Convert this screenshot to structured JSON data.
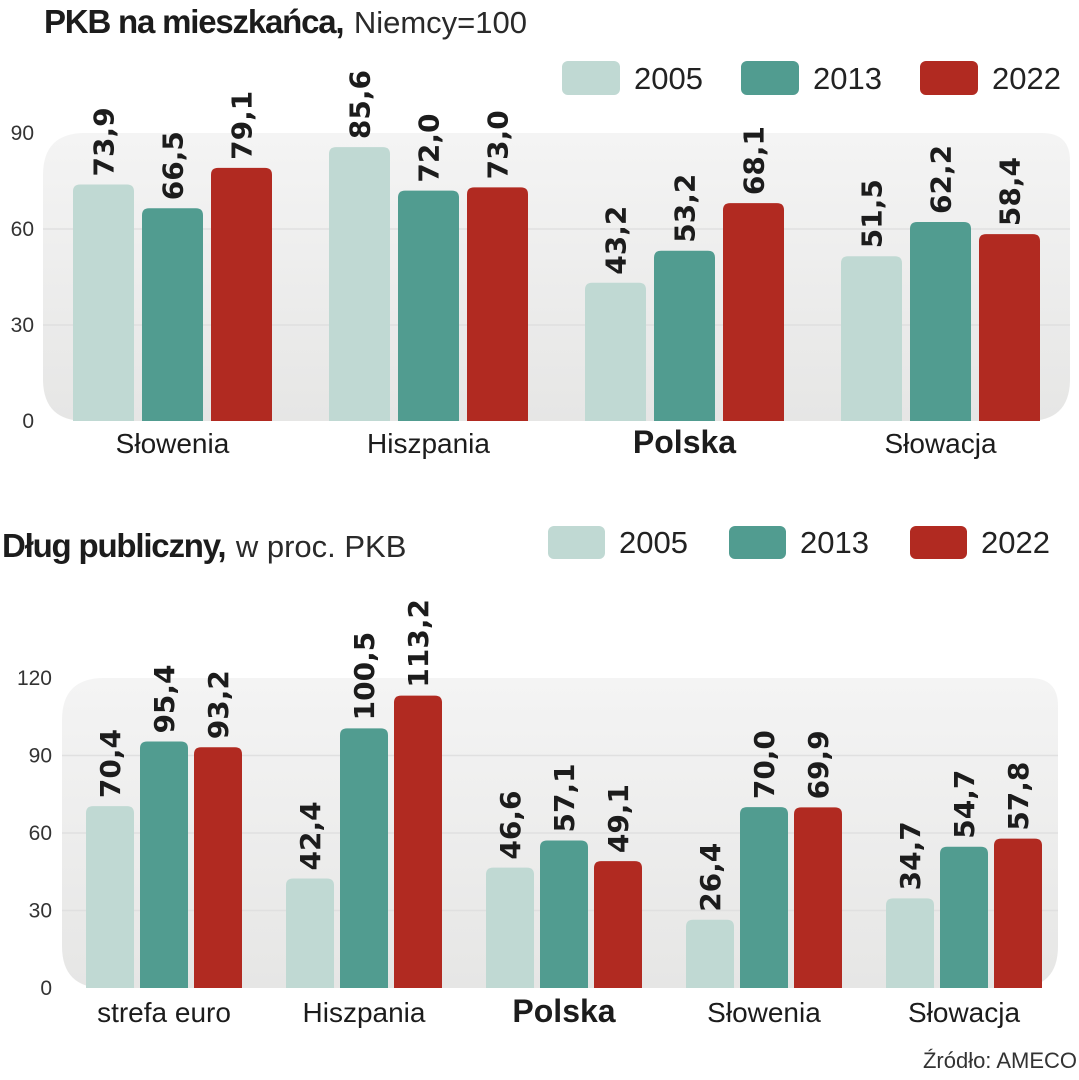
{
  "colors": {
    "2005": "#c0d9d3",
    "2013": "#519c90",
    "2022": "#b12a21",
    "panel": "#efefef",
    "grid": "#e0e0e0"
  },
  "source": "Źródło: AMECO",
  "chart_data": [
    {
      "type": "bar",
      "title": "PKB na mieszkańca,",
      "subtitle": "Niemcy=100",
      "xlabel": "",
      "ylabel": "",
      "ylim": [
        0,
        90
      ],
      "yticks": [
        0,
        30,
        60,
        90
      ],
      "grid": true,
      "legend": {
        "placement": "top-right",
        "entries": [
          "2005",
          "2013",
          "2022"
        ]
      },
      "categories": [
        "Słowenia",
        "Hiszpania",
        "Polska",
        "Słowacja"
      ],
      "highlight_category": "Polska",
      "series": [
        {
          "name": "2005",
          "values": [
            73.9,
            85.6,
            43.2,
            51.5
          ],
          "labels": [
            "73,9",
            "85,6",
            "43,2",
            "51,5"
          ]
        },
        {
          "name": "2013",
          "values": [
            66.5,
            72.0,
            53.2,
            62.2
          ],
          "labels": [
            "66,5",
            "72,0",
            "53,2",
            "62,2"
          ]
        },
        {
          "name": "2022",
          "values": [
            79.1,
            73.0,
            68.1,
            58.4
          ],
          "labels": [
            "79,1",
            "73,0",
            "68,1",
            "58,4"
          ]
        }
      ]
    },
    {
      "type": "bar",
      "title": "Dług publiczny,",
      "subtitle": "w proc. PKB",
      "xlabel": "",
      "ylabel": "",
      "ylim": [
        0,
        120
      ],
      "yticks": [
        0,
        30,
        60,
        90,
        120
      ],
      "grid": true,
      "legend": {
        "placement": "top-right",
        "entries": [
          "2005",
          "2013",
          "2022"
        ]
      },
      "categories": [
        "strefa euro",
        "Hiszpania",
        "Polska",
        "Słowenia",
        "Słowacja"
      ],
      "highlight_category": "Polska",
      "series": [
        {
          "name": "2005",
          "values": [
            70.4,
            42.4,
            46.6,
            26.4,
            34.7
          ],
          "labels": [
            "70,4",
            "42,4",
            "46,6",
            "26,4",
            "34,7"
          ]
        },
        {
          "name": "2013",
          "values": [
            95.4,
            100.5,
            57.1,
            70.0,
            54.7
          ],
          "labels": [
            "95,4",
            "100,5",
            "57,1",
            "70,0",
            "54,7"
          ]
        },
        {
          "name": "2022",
          "values": [
            93.2,
            113.2,
            49.1,
            69.9,
            57.8
          ],
          "labels": [
            "93,2",
            "113,2",
            "49,1",
            "69,9",
            "57,8"
          ]
        }
      ]
    }
  ]
}
